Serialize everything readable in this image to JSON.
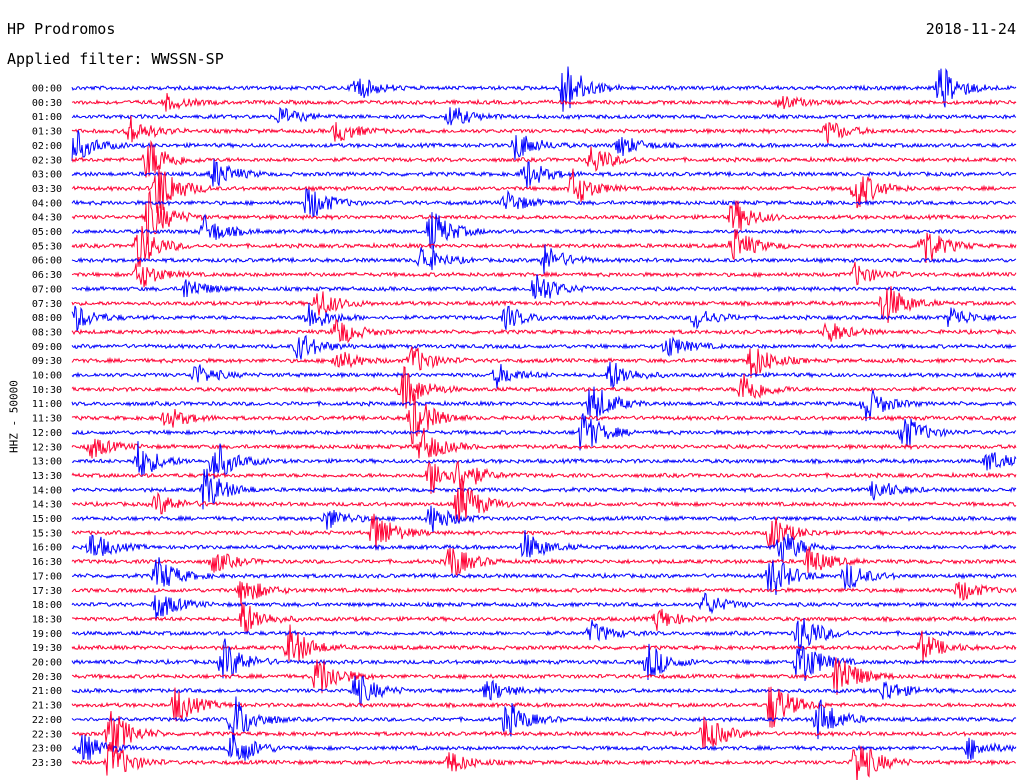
{
  "header": {
    "station": "HP Prodromos",
    "filter": "Applied filter: WWSSN-SP",
    "date": "2018-11-24"
  },
  "side_label": "HHZ - 50000",
  "colors": {
    "trace_a": "#0000ff",
    "trace_b": "#ff0033"
  },
  "chart_data": {
    "type": "line",
    "title": "HP Prodromos",
    "subtitle": "Applied filter: WWSSN-SP",
    "ylabel": "HHZ - 50000",
    "row_labels": [
      "00:00",
      "00:30",
      "01:00",
      "01:30",
      "02:00",
      "02:30",
      "03:00",
      "03:30",
      "04:00",
      "04:30",
      "05:00",
      "05:30",
      "06:00",
      "06:30",
      "07:00",
      "07:30",
      "08:00",
      "08:30",
      "09:00",
      "09:30",
      "10:00",
      "10:30",
      "11:00",
      "11:30",
      "12:00",
      "12:30",
      "13:00",
      "13:30",
      "14:00",
      "14:30",
      "15:00",
      "15:30",
      "16:00",
      "16:30",
      "17:00",
      "17:30",
      "18:00",
      "18:30",
      "19:00",
      "19:30",
      "20:00",
      "20:30",
      "21:00",
      "21:30",
      "22:00",
      "22:30",
      "23:00",
      "23:30"
    ],
    "series": [
      {
        "name": "",
        "color": "#0000ff",
        "rows": "even"
      },
      {
        "name": "",
        "color": "#ff0033",
        "rows": "odd"
      }
    ],
    "events": [
      {
        "row": 0,
        "pos": 0.3,
        "amp": 3.5
      },
      {
        "row": 0,
        "pos": 0.52,
        "amp": 8
      },
      {
        "row": 0,
        "pos": 0.92,
        "amp": 6
      },
      {
        "row": 1,
        "pos": 0.1,
        "amp": 2
      },
      {
        "row": 1,
        "pos": 0.75,
        "amp": 2
      },
      {
        "row": 2,
        "pos": 0.22,
        "amp": 2.5
      },
      {
        "row": 2,
        "pos": 0.4,
        "amp": 3
      },
      {
        "row": 3,
        "pos": 0.06,
        "amp": 4
      },
      {
        "row": 3,
        "pos": 0.28,
        "amp": 3
      },
      {
        "row": 3,
        "pos": 0.8,
        "amp": 3
      },
      {
        "row": 4,
        "pos": 0.0,
        "amp": 5
      },
      {
        "row": 4,
        "pos": 0.47,
        "amp": 4
      },
      {
        "row": 4,
        "pos": 0.58,
        "amp": 3
      },
      {
        "row": 5,
        "pos": 0.08,
        "amp": 6
      },
      {
        "row": 5,
        "pos": 0.55,
        "amp": 4
      },
      {
        "row": 6,
        "pos": 0.15,
        "amp": 4
      },
      {
        "row": 6,
        "pos": 0.48,
        "amp": 4
      },
      {
        "row": 7,
        "pos": 0.09,
        "amp": 8
      },
      {
        "row": 7,
        "pos": 0.53,
        "amp": 5
      },
      {
        "row": 7,
        "pos": 0.83,
        "amp": 6
      },
      {
        "row": 8,
        "pos": 0.25,
        "amp": 5
      },
      {
        "row": 8,
        "pos": 0.46,
        "amp": 3
      },
      {
        "row": 9,
        "pos": 0.08,
        "amp": 7
      },
      {
        "row": 9,
        "pos": 0.7,
        "amp": 5
      },
      {
        "row": 10,
        "pos": 0.38,
        "amp": 6
      },
      {
        "row": 10,
        "pos": 0.14,
        "amp": 4
      },
      {
        "row": 11,
        "pos": 0.07,
        "amp": 6
      },
      {
        "row": 11,
        "pos": 0.7,
        "amp": 5
      },
      {
        "row": 11,
        "pos": 0.9,
        "amp": 6
      },
      {
        "row": 12,
        "pos": 0.37,
        "amp": 4
      },
      {
        "row": 12,
        "pos": 0.5,
        "amp": 4
      },
      {
        "row": 13,
        "pos": 0.07,
        "amp": 4
      },
      {
        "row": 13,
        "pos": 0.83,
        "amp": 3
      },
      {
        "row": 14,
        "pos": 0.49,
        "amp": 5
      },
      {
        "row": 14,
        "pos": 0.12,
        "amp": 3
      },
      {
        "row": 15,
        "pos": 0.26,
        "amp": 4
      },
      {
        "row": 15,
        "pos": 0.86,
        "amp": 6
      },
      {
        "row": 16,
        "pos": 0.0,
        "amp": 4
      },
      {
        "row": 16,
        "pos": 0.25,
        "amp": 4
      },
      {
        "row": 16,
        "pos": 0.46,
        "amp": 3
      },
      {
        "row": 16,
        "pos": 0.66,
        "amp": 3
      },
      {
        "row": 16,
        "pos": 0.93,
        "amp": 3
      },
      {
        "row": 17,
        "pos": 0.28,
        "amp": 4
      },
      {
        "row": 17,
        "pos": 0.8,
        "amp": 3
      },
      {
        "row": 18,
        "pos": 0.63,
        "amp": 3
      },
      {
        "row": 18,
        "pos": 0.24,
        "amp": 4
      },
      {
        "row": 19,
        "pos": 0.28,
        "amp": 3
      },
      {
        "row": 19,
        "pos": 0.36,
        "amp": 4
      },
      {
        "row": 19,
        "pos": 0.72,
        "amp": 5
      },
      {
        "row": 20,
        "pos": 0.45,
        "amp": 3
      },
      {
        "row": 20,
        "pos": 0.57,
        "amp": 4
      },
      {
        "row": 20,
        "pos": 0.13,
        "amp": 3
      },
      {
        "row": 21,
        "pos": 0.35,
        "amp": 6
      },
      {
        "row": 21,
        "pos": 0.71,
        "amp": 5
      },
      {
        "row": 22,
        "pos": 0.55,
        "amp": 6
      },
      {
        "row": 22,
        "pos": 0.84,
        "amp": 5
      },
      {
        "row": 23,
        "pos": 0.36,
        "amp": 7
      },
      {
        "row": 23,
        "pos": 0.1,
        "amp": 3
      },
      {
        "row": 24,
        "pos": 0.54,
        "amp": 6
      },
      {
        "row": 24,
        "pos": 0.88,
        "amp": 5
      },
      {
        "row": 25,
        "pos": 0.37,
        "amp": 5
      },
      {
        "row": 25,
        "pos": 0.02,
        "amp": 3
      },
      {
        "row": 26,
        "pos": 0.07,
        "amp": 5
      },
      {
        "row": 26,
        "pos": 0.15,
        "amp": 6
      },
      {
        "row": 26,
        "pos": 0.97,
        "amp": 3
      },
      {
        "row": 27,
        "pos": 0.38,
        "amp": 5
      },
      {
        "row": 27,
        "pos": 0.41,
        "amp": 4
      },
      {
        "row": 28,
        "pos": 0.14,
        "amp": 6
      },
      {
        "row": 28,
        "pos": 0.85,
        "amp": 3
      },
      {
        "row": 29,
        "pos": 0.41,
        "amp": 7
      },
      {
        "row": 29,
        "pos": 0.09,
        "amp": 3
      },
      {
        "row": 30,
        "pos": 0.27,
        "amp": 3
      },
      {
        "row": 30,
        "pos": 0.38,
        "amp": 4
      },
      {
        "row": 31,
        "pos": 0.32,
        "amp": 6
      },
      {
        "row": 31,
        "pos": 0.74,
        "amp": 5
      },
      {
        "row": 32,
        "pos": 0.02,
        "amp": 4
      },
      {
        "row": 32,
        "pos": 0.48,
        "amp": 4
      },
      {
        "row": 32,
        "pos": 0.75,
        "amp": 5
      },
      {
        "row": 33,
        "pos": 0.15,
        "amp": 3
      },
      {
        "row": 33,
        "pos": 0.4,
        "amp": 5
      },
      {
        "row": 33,
        "pos": 0.78,
        "amp": 4
      },
      {
        "row": 34,
        "pos": 0.09,
        "amp": 5
      },
      {
        "row": 34,
        "pos": 0.74,
        "amp": 6
      },
      {
        "row": 34,
        "pos": 0.82,
        "amp": 4
      },
      {
        "row": 35,
        "pos": 0.18,
        "amp": 4
      },
      {
        "row": 35,
        "pos": 0.94,
        "amp": 3
      },
      {
        "row": 36,
        "pos": 0.09,
        "amp": 4
      },
      {
        "row": 36,
        "pos": 0.67,
        "amp": 3
      },
      {
        "row": 37,
        "pos": 0.18,
        "amp": 5
      },
      {
        "row": 37,
        "pos": 0.62,
        "amp": 3
      },
      {
        "row": 38,
        "pos": 0.55,
        "amp": 3
      },
      {
        "row": 38,
        "pos": 0.77,
        "amp": 6
      },
      {
        "row": 39,
        "pos": 0.23,
        "amp": 6
      },
      {
        "row": 39,
        "pos": 0.9,
        "amp": 4
      },
      {
        "row": 40,
        "pos": 0.16,
        "amp": 6
      },
      {
        "row": 40,
        "pos": 0.61,
        "amp": 5
      },
      {
        "row": 40,
        "pos": 0.77,
        "amp": 7
      },
      {
        "row": 41,
        "pos": 0.26,
        "amp": 6
      },
      {
        "row": 41,
        "pos": 0.81,
        "amp": 7
      },
      {
        "row": 42,
        "pos": 0.3,
        "amp": 5
      },
      {
        "row": 42,
        "pos": 0.44,
        "amp": 3
      },
      {
        "row": 42,
        "pos": 0.86,
        "amp": 3
      },
      {
        "row": 43,
        "pos": 0.11,
        "amp": 5
      },
      {
        "row": 43,
        "pos": 0.74,
        "amp": 7
      },
      {
        "row": 44,
        "pos": 0.17,
        "amp": 7
      },
      {
        "row": 44,
        "pos": 0.46,
        "amp": 5
      },
      {
        "row": 44,
        "pos": 0.79,
        "amp": 6
      },
      {
        "row": 45,
        "pos": 0.04,
        "amp": 7
      },
      {
        "row": 45,
        "pos": 0.67,
        "amp": 5
      },
      {
        "row": 46,
        "pos": 0.01,
        "amp": 4
      },
      {
        "row": 46,
        "pos": 0.17,
        "amp": 6
      },
      {
        "row": 46,
        "pos": 0.95,
        "amp": 3
      },
      {
        "row": 47,
        "pos": 0.04,
        "amp": 6
      },
      {
        "row": 47,
        "pos": 0.4,
        "amp": 3
      },
      {
        "row": 47,
        "pos": 0.83,
        "amp": 7
      }
    ]
  }
}
